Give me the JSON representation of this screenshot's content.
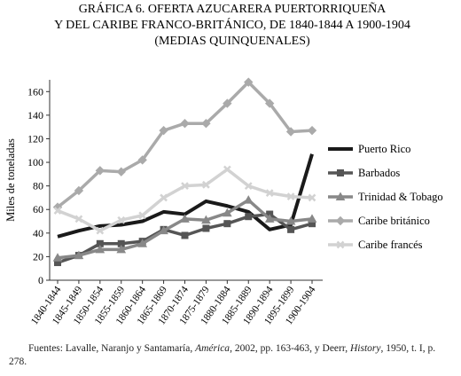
{
  "chart_data": {
    "type": "line",
    "title": [
      "GRÁFICA 6. OFERTA AZUCARERA PUERTORRIQUEÑA",
      "Y DEL CARIBE FRANCO-BRITÁNICO, DE 1840-1844 A 1900-1904",
      "(MEDIAS QUINQUENALES)"
    ],
    "y_label": "Miles de toneladas",
    "categories": [
      "1840-1844",
      "1845-1849",
      "1850-1854",
      "1855-1859",
      "1860-1864",
      "1865-1869",
      "1870-1874",
      "1875-1879",
      "1880-1884",
      "1885-1889",
      "1890-1894",
      "1895-1899",
      "1900-1904"
    ],
    "ylim": [
      0,
      170
    ],
    "yticks": [
      0,
      20,
      40,
      60,
      80,
      100,
      120,
      140,
      160
    ],
    "series": [
      {
        "name": "Puerto Rico",
        "color": "#1a1a1a",
        "marker": "none",
        "values": [
          37,
          42,
          46,
          47,
          50,
          58,
          56,
          67,
          63,
          58,
          43,
          47,
          107
        ]
      },
      {
        "name": "Barbados",
        "color": "#555555",
        "marker": "square",
        "values": [
          15,
          21,
          31,
          31,
          33,
          43,
          38,
          44,
          48,
          54,
          56,
          43,
          48
        ]
      },
      {
        "name": "Trinidad & Tobago",
        "color": "#888888",
        "marker": "triangle",
        "values": [
          19,
          21,
          26,
          26,
          31,
          42,
          52,
          51,
          57,
          68,
          52,
          50,
          52
        ]
      },
      {
        "name": "Caribe británico",
        "color": "#aaaaaa",
        "marker": "diamond",
        "values": [
          62,
          76,
          93,
          92,
          102,
          127,
          133,
          133,
          150,
          168,
          150,
          126,
          127
        ]
      },
      {
        "name": "Caribe francés",
        "color": "#d2d2d2",
        "marker": "x",
        "values": [
          59,
          52,
          42,
          51,
          55,
          70,
          80,
          81,
          94,
          80,
          74,
          71,
          70
        ]
      }
    ],
    "source": [
      "Fuentes: Lavalle, Naranjo y Santamaría, ",
      "América",
      ", 2002, pp. 163-463, y Deerr, ",
      "History",
      ", 1950, t. I, p. 278."
    ]
  }
}
